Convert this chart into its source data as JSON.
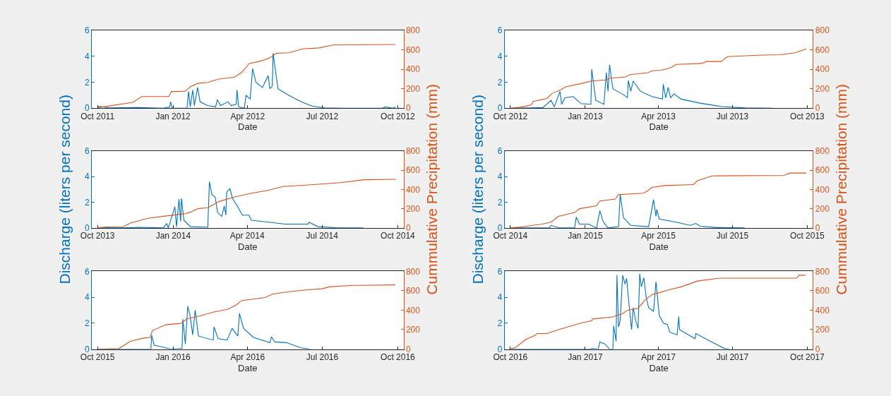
{
  "chart_data": [
    {
      "type": "line",
      "xlabel": "Date",
      "xlim": [
        "2011-09-24",
        "2012-10-08"
      ],
      "xticks": [
        {
          "value": "2011-10-01",
          "label": "Oct 2011"
        },
        {
          "value": "2012-01-01",
          "label": "Jan 2012"
        },
        {
          "value": "2012-04-01",
          "label": "Apr 2012"
        },
        {
          "value": "2012-07-01",
          "label": "Jul 2012"
        },
        {
          "value": "2012-10-01",
          "label": "Oct 2012"
        }
      ],
      "ylim": [
        0,
        6
      ],
      "yticks": [
        0,
        2,
        4,
        6
      ],
      "y2lim": [
        0,
        800
      ],
      "y2ticks": [
        0,
        200,
        400,
        600,
        800
      ],
      "series": [
        {
          "color": "#0072bd",
          "x": [
            "2011-10-01",
            "2011-10-03",
            "2011-10-15",
            "2011-11-20",
            "2011-12-20",
            "2011-12-28",
            "2011-12-29",
            "2011-12-31",
            "2012-01-18",
            "2012-01-20",
            "2012-01-22",
            "2012-01-25",
            "2012-01-27",
            "2012-01-31",
            "2012-02-03",
            "2012-02-12",
            "2012-02-22",
            "2012-02-24",
            "2012-02-28",
            "2012-03-08",
            "2012-03-12",
            "2012-03-18",
            "2012-03-19",
            "2012-03-21",
            "2012-03-28",
            "2012-03-30",
            "2012-04-04",
            "2012-04-07",
            "2012-04-11",
            "2012-04-19",
            "2012-04-26",
            "2012-04-28",
            "2012-05-01",
            "2012-05-02",
            "2012-05-04",
            "2012-05-08",
            "2012-05-21",
            "2012-06-05",
            "2012-06-19",
            "2012-07-04",
            "2012-07-26",
            "2012-09-12",
            "2012-09-16",
            "2012-09-25",
            "2012-09-28"
          ],
          "values": [
            0,
            0.15,
            0.02,
            0.05,
            0,
            0.1,
            0.5,
            0,
            0,
            1.3,
            0.1,
            1.4,
            0.2,
            1.6,
            0.5,
            0.2,
            0.1,
            0.65,
            0.2,
            0.5,
            0.2,
            0.3,
            1.4,
            0.1,
            0,
            1.0,
            0.7,
            3.05,
            2.0,
            1.6,
            2.5,
            1.5,
            1.7,
            4.25,
            3.3,
            1.5,
            1.0,
            0.5,
            0.15,
            0.03,
            0,
            0,
            0.1,
            0,
            0.1
          ]
        },
        {
          "color": "#d95319",
          "axis": "y2",
          "x": [
            "2011-10-01",
            "2011-10-05",
            "2011-11-13",
            "2011-11-24",
            "2011-12-27",
            "2011-12-30",
            "2012-01-16",
            "2012-01-22",
            "2012-01-31",
            "2012-02-12",
            "2012-02-26",
            "2012-03-16",
            "2012-03-25",
            "2012-04-03",
            "2012-04-15",
            "2012-04-26",
            "2012-05-06",
            "2012-05-21",
            "2012-06-07",
            "2012-06-27",
            "2012-07-14",
            "2012-09-28"
          ],
          "values": [
            0,
            10,
            60,
            120,
            120,
            170,
            175,
            220,
            255,
            265,
            300,
            320,
            370,
            460,
            480,
            510,
            565,
            570,
            610,
            620,
            650,
            655
          ]
        }
      ]
    },
    {
      "type": "line",
      "xlabel": "Date",
      "xlim": [
        "2012-09-24",
        "2013-10-08"
      ],
      "xticks": [
        {
          "value": "2012-10-01",
          "label": "Oct 2012"
        },
        {
          "value": "2013-01-01",
          "label": "Jan 2013"
        },
        {
          "value": "2013-04-01",
          "label": "Apr 2013"
        },
        {
          "value": "2013-07-01",
          "label": "Jul 2013"
        },
        {
          "value": "2013-10-01",
          "label": "Oct 2013"
        }
      ],
      "ylim": [
        0,
        6
      ],
      "yticks": [
        0,
        2,
        4,
        6
      ],
      "y2lim": [
        0,
        800
      ],
      "y2ticks": [
        0,
        200,
        400,
        600,
        800
      ],
      "series": [
        {
          "color": "#0072bd",
          "x": [
            "2012-10-01",
            "2012-11-10",
            "2012-11-20",
            "2012-11-24",
            "2012-12-01",
            "2012-12-03",
            "2012-12-07",
            "2012-12-17",
            "2012-12-27",
            "2013-01-08",
            "2013-01-09",
            "2013-01-14",
            "2013-01-24",
            "2013-01-27",
            "2013-01-29",
            "2013-01-31",
            "2013-02-04",
            "2013-02-18",
            "2013-02-22",
            "2013-02-23",
            "2013-02-26",
            "2013-03-01",
            "2013-03-10",
            "2013-03-24",
            "2013-04-06",
            "2013-04-07",
            "2013-04-10",
            "2013-04-13",
            "2013-04-16",
            "2013-04-20",
            "2013-04-29",
            "2013-05-21",
            "2013-06-18",
            "2013-07-17",
            "2013-08-20"
          ],
          "values": [
            0,
            0.05,
            0.6,
            0.1,
            1.3,
            0.3,
            0.8,
            0.9,
            0.35,
            0.3,
            3.0,
            0.6,
            0.3,
            2.75,
            1.3,
            3.35,
            1.5,
            1.0,
            0.8,
            2.15,
            1.3,
            2.1,
            1.3,
            0.9,
            0.7,
            1.85,
            0.8,
            1.6,
            0.8,
            1.1,
            0.7,
            0.4,
            0.12,
            0.02,
            0
          ]
        },
        {
          "color": "#d95319",
          "axis": "y2",
          "x": [
            "2012-10-01",
            "2012-10-14",
            "2012-10-27",
            "2012-10-29",
            "2012-11-15",
            "2012-11-21",
            "2012-12-02",
            "2012-12-08",
            "2012-12-28",
            "2013-01-09",
            "2013-01-27",
            "2013-02-01",
            "2013-02-19",
            "2013-02-25",
            "2013-03-19",
            "2013-03-25",
            "2013-04-05",
            "2013-04-17",
            "2013-04-23",
            "2013-05-24",
            "2013-05-30",
            "2013-06-17",
            "2013-06-25",
            "2013-08-01",
            "2013-08-30",
            "2013-09-16",
            "2013-09-30"
          ],
          "values": [
            0,
            10,
            35,
            70,
            100,
            150,
            190,
            220,
            255,
            280,
            290,
            310,
            320,
            345,
            365,
            385,
            390,
            420,
            450,
            460,
            480,
            480,
            530,
            545,
            550,
            570,
            610
          ]
        }
      ]
    },
    {
      "type": "line",
      "xlabel": "Date",
      "ylabel": "Discharge (liters per second)",
      "y2label": "Cummulative Precipitation (mm)",
      "xlim": [
        "2013-09-24",
        "2014-10-08"
      ],
      "xticks": [
        {
          "value": "2013-10-01",
          "label": "Oct 2013"
        },
        {
          "value": "2014-01-01",
          "label": "Jan 2014"
        },
        {
          "value": "2014-04-01",
          "label": "Apr 2014"
        },
        {
          "value": "2014-07-01",
          "label": "Jul 2014"
        },
        {
          "value": "2014-10-01",
          "label": "Oct 2014"
        }
      ],
      "ylim": [
        0,
        6
      ],
      "yticks": [
        0,
        2,
        4,
        6
      ],
      "y2lim": [
        0,
        800
      ],
      "y2ticks": [
        0,
        200,
        400,
        600,
        800
      ],
      "series": [
        {
          "color": "#0072bd",
          "x": [
            "2013-10-01",
            "2013-11-01",
            "2013-11-20",
            "2013-12-20",
            "2013-12-24",
            "2013-12-26",
            "2014-01-03",
            "2014-01-05",
            "2014-01-08",
            "2014-01-10",
            "2014-01-11",
            "2014-01-14",
            "2014-01-22",
            "2014-02-12",
            "2014-02-14",
            "2014-02-17",
            "2014-02-21",
            "2014-02-24",
            "2014-03-01",
            "2014-03-04",
            "2014-03-06",
            "2014-03-07",
            "2014-03-11",
            "2014-03-14",
            "2014-03-20",
            "2014-03-26",
            "2014-04-03",
            "2014-04-06",
            "2014-04-27",
            "2014-05-17",
            "2014-06-14",
            "2014-06-15",
            "2014-06-26",
            "2014-07-17",
            "2014-08-20"
          ],
          "values": [
            0,
            0,
            0.05,
            0,
            0.35,
            0,
            1.65,
            0.1,
            2.25,
            0.5,
            2.3,
            0.6,
            0.1,
            0.05,
            3.6,
            2.6,
            2.4,
            1.2,
            0.9,
            1.7,
            1.0,
            2.8,
            3.05,
            2.3,
            1.7,
            1.0,
            1.0,
            0.6,
            0.45,
            0.3,
            0.3,
            0.45,
            0.1,
            0.02,
            0
          ]
        },
        {
          "color": "#d95319",
          "axis": "y2",
          "x": [
            "2013-10-01",
            "2013-10-12",
            "2013-11-01",
            "2013-11-10",
            "2013-12-01",
            "2013-12-24",
            "2014-01-17",
            "2014-01-22",
            "2014-01-31",
            "2014-02-12",
            "2014-02-26",
            "2014-03-16",
            "2014-04-06",
            "2014-04-26",
            "2014-05-14",
            "2014-06-21",
            "2014-07-23",
            "2014-08-21",
            "2014-09-29"
          ],
          "values": [
            0,
            10,
            12,
            50,
            100,
            125,
            150,
            165,
            200,
            210,
            275,
            320,
            360,
            390,
            430,
            450,
            470,
            500,
            505
          ]
        }
      ]
    },
    {
      "type": "line",
      "xlabel": "Date",
      "ylabel": "Discharge (liters per second)",
      "y2label": "Cummulative Precipitation (mm)",
      "xlim": [
        "2014-09-24",
        "2015-10-08"
      ],
      "xticks": [
        {
          "value": "2014-10-01",
          "label": "Oct 2014"
        },
        {
          "value": "2015-01-01",
          "label": "Jan 2015"
        },
        {
          "value": "2015-04-01",
          "label": "Apr 2015"
        },
        {
          "value": "2015-07-01",
          "label": "Jul 2015"
        },
        {
          "value": "2015-10-01",
          "label": "Oct 2015"
        }
      ],
      "ylim": [
        0,
        6
      ],
      "yticks": [
        0,
        2,
        4,
        6
      ],
      "y2lim": [
        0,
        800
      ],
      "y2ticks": [
        0,
        200,
        400,
        600,
        800
      ],
      "series": [
        {
          "color": "#0072bd",
          "x": [
            "2014-10-01",
            "2014-11-18",
            "2014-11-20",
            "2014-12-01",
            "2014-12-19",
            "2014-12-21",
            "2014-12-25",
            "2015-01-05",
            "2015-01-15",
            "2015-01-19",
            "2015-01-23",
            "2015-01-29",
            "2015-02-11",
            "2015-02-13",
            "2015-02-17",
            "2015-02-23",
            "2015-02-26",
            "2015-03-20",
            "2015-03-26",
            "2015-03-29",
            "2015-03-30",
            "2015-04-02",
            "2015-04-23",
            "2015-05-10",
            "2015-05-17",
            "2015-05-22",
            "2015-06-11",
            "2015-07-16"
          ],
          "values": [
            0,
            0,
            0.2,
            0,
            0,
            0.85,
            0.3,
            0.3,
            0,
            1.35,
            0.5,
            0,
            0.1,
            2.65,
            0.8,
            0.4,
            0.2,
            0.1,
            2.2,
            0.9,
            1.45,
            0.7,
            0.45,
            0.2,
            0.35,
            0.15,
            0.03,
            0
          ]
        },
        {
          "color": "#d95319",
          "axis": "y2",
          "x": [
            "2014-10-01",
            "2014-10-14",
            "2014-11-09",
            "2014-11-20",
            "2014-11-29",
            "2014-12-19",
            "2014-12-25",
            "2015-01-15",
            "2015-01-19",
            "2015-02-07",
            "2015-02-11",
            "2015-03-13",
            "2015-03-18",
            "2015-03-24",
            "2015-04-08",
            "2015-05-14",
            "2015-05-19",
            "2015-06-06",
            "2015-09-02",
            "2015-09-10",
            "2015-09-30"
          ],
          "values": [
            0,
            10,
            40,
            60,
            120,
            160,
            200,
            230,
            280,
            300,
            345,
            360,
            380,
            420,
            440,
            450,
            490,
            540,
            545,
            570,
            570
          ]
        }
      ]
    },
    {
      "type": "line",
      "xlabel": "Date",
      "xlim": [
        "2015-09-24",
        "2016-10-08"
      ],
      "xticks": [
        {
          "value": "2015-10-01",
          "label": "Oct 2015"
        },
        {
          "value": "2016-01-01",
          "label": "Jan 2016"
        },
        {
          "value": "2016-04-01",
          "label": "Apr 2016"
        },
        {
          "value": "2016-07-01",
          "label": "Jul 2016"
        },
        {
          "value": "2016-10-01",
          "label": "Oct 2016"
        }
      ],
      "ylim": [
        0,
        6
      ],
      "yticks": [
        0,
        2,
        4,
        6
      ],
      "y2lim": [
        0,
        800
      ],
      "y2ticks": [
        0,
        200,
        400,
        600,
        800
      ],
      "series": [
        {
          "color": "#0072bd",
          "x": [
            "2015-10-01",
            "2015-12-05",
            "2015-12-06",
            "2015-12-09",
            "2015-12-20",
            "2015-12-29",
            "2016-01-12",
            "2016-01-13",
            "2016-01-16",
            "2016-01-19",
            "2016-01-22",
            "2016-01-25",
            "2016-01-28",
            "2016-02-01",
            "2016-02-19",
            "2016-02-20",
            "2016-02-25",
            "2016-03-07",
            "2016-03-13",
            "2016-03-20",
            "2016-03-22",
            "2016-03-27",
            "2016-04-08",
            "2016-04-28",
            "2016-04-30",
            "2016-05-04",
            "2016-05-18",
            "2016-06-05",
            "2016-06-16"
          ],
          "values": [
            0,
            0,
            1.05,
            0.3,
            0.15,
            0,
            0.05,
            2.3,
            0.4,
            3.3,
            2.5,
            1.1,
            3.0,
            1.0,
            0.7,
            1.7,
            0.8,
            0.7,
            1.6,
            1.0,
            2.75,
            1.6,
            0.9,
            0.5,
            0.95,
            0.55,
            0.5,
            0.1,
            0
          ]
        },
        {
          "color": "#d95319",
          "axis": "y2",
          "x": [
            "2015-10-01",
            "2015-10-27",
            "2015-11-10",
            "2015-11-24",
            "2015-12-04",
            "2015-12-07",
            "2015-12-23",
            "2016-01-11",
            "2016-01-18",
            "2016-02-02",
            "2016-02-19",
            "2016-03-08",
            "2016-03-19",
            "2016-03-25",
            "2016-04-22",
            "2016-05-01",
            "2016-05-21",
            "2016-06-13",
            "2016-07-01",
            "2016-07-09",
            "2016-08-07",
            "2016-09-28"
          ],
          "values": [
            0,
            5,
            80,
            110,
            120,
            190,
            250,
            265,
            310,
            340,
            380,
            410,
            460,
            500,
            530,
            565,
            590,
            610,
            620,
            640,
            655,
            660
          ]
        }
      ]
    },
    {
      "type": "line",
      "xlabel": "Date",
      "xlim": [
        "2016-09-24",
        "2017-10-08"
      ],
      "xticks": [
        {
          "value": "2016-10-01",
          "label": "Oct 2016"
        },
        {
          "value": "2017-01-01",
          "label": "Jan 2017"
        },
        {
          "value": "2017-04-01",
          "label": "Apr 2017"
        },
        {
          "value": "2017-07-01",
          "label": "Jul 2017"
        },
        {
          "value": "2017-10-01",
          "label": "Oct 2017"
        }
      ],
      "ylim": [
        0,
        6
      ],
      "yticks": [
        0,
        2,
        4,
        6
      ],
      "y2lim": [
        0,
        800
      ],
      "y2ticks": [
        0,
        200,
        400,
        600,
        800
      ],
      "series": [
        {
          "color": "#0072bd",
          "x": [
            "2016-10-01",
            "2017-01-08",
            "2017-01-09",
            "2017-01-17",
            "2017-01-19",
            "2017-01-25",
            "2017-01-31",
            "2017-02-04",
            "2017-02-05",
            "2017-02-08",
            "2017-02-09",
            "2017-02-11",
            "2017-02-13",
            "2017-02-16",
            "2017-02-19",
            "2017-02-21",
            "2017-02-23",
            "2017-02-27",
            "2017-03-01",
            "2017-03-04",
            "2017-03-07",
            "2017-03-09",
            "2017-03-11",
            "2017-03-14",
            "2017-03-17",
            "2017-03-20",
            "2017-03-26",
            "2017-03-29",
            "2017-04-02",
            "2017-04-07",
            "2017-04-12",
            "2017-04-15",
            "2017-04-24",
            "2017-04-26",
            "2017-04-27",
            "2017-05-16",
            "2017-05-17",
            "2017-06-04",
            "2017-06-21",
            "2017-06-27"
          ],
          "values": [
            0,
            0,
            0.05,
            0,
            0.55,
            0.4,
            0,
            0,
            1.8,
            0.6,
            5.7,
            1.7,
            2.2,
            5.7,
            5.0,
            5.45,
            4.0,
            1.5,
            3.2,
            2.2,
            1.6,
            5.8,
            4.8,
            5.5,
            4.0,
            3.2,
            2.9,
            5.2,
            2.6,
            2.0,
            1.9,
            1.3,
            1.1,
            2.5,
            1.5,
            0.8,
            1.2,
            0.6,
            0.05,
            0
          ]
        },
        {
          "color": "#d95319",
          "axis": "y2",
          "x": [
            "2016-10-01",
            "2016-10-08",
            "2016-10-20",
            "2016-10-31",
            "2016-11-03",
            "2016-11-15",
            "2016-11-29",
            "2016-12-28",
            "2017-01-09",
            "2017-01-10",
            "2017-02-04",
            "2017-02-10",
            "2017-02-15",
            "2017-02-22",
            "2017-03-07",
            "2017-03-16",
            "2017-03-24",
            "2017-04-02",
            "2017-04-14",
            "2017-04-29",
            "2017-05-19",
            "2017-06-16",
            "2017-09-18",
            "2017-09-21",
            "2017-09-29"
          ],
          "values": [
            0,
            20,
            100,
            140,
            160,
            160,
            200,
            270,
            290,
            310,
            330,
            350,
            360,
            400,
            420,
            510,
            560,
            580,
            610,
            640,
            700,
            730,
            730,
            760,
            760
          ]
        }
      ]
    }
  ]
}
